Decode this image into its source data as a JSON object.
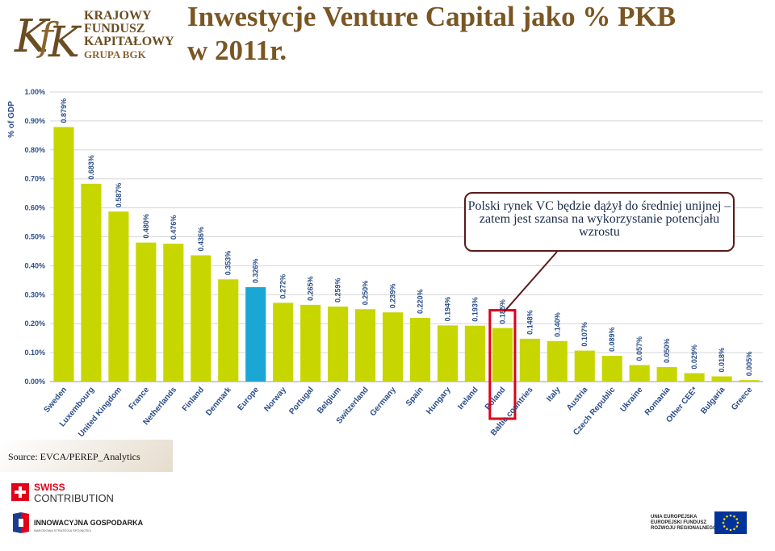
{
  "logo": {
    "monogram": "KFK",
    "line1": "KRAJOWY",
    "line2": "FUNDUSZ",
    "line3": "KAPITAŁOWY",
    "line4": "GRUPA BGK"
  },
  "title": {
    "line1": "Inwestycje Venture Capital jako % PKB",
    "line2": "w 2011r."
  },
  "callout": {
    "text": "Polski rynek VC będzie dążył do średniej unijnej – zatem jest szansa na wykorzystanie potencjału wzrostu"
  },
  "source": "Source: EVCA/PEREP_Analytics",
  "footer": {
    "swiss_line1": "SWISS",
    "swiss_line2": "CONTRIBUTION",
    "ig_line1": "INNOWACYJNA GOSPODARKA",
    "ig_line2": "NARODOWA STRATEGIA SPÓJNOŚCI",
    "eu_line1": "UNIA EUROPEJSKA",
    "eu_line2": "EUROPEJSKI FUNDUSZ",
    "eu_line3": "ROZWOJU REGIONALNEGO"
  },
  "colors": {
    "bar": "#c8d600",
    "bar_highlight": "#1aa7d6",
    "highlight_box": "#e0001a",
    "axis_text": "#2a4d8a",
    "title": "#7a5623"
  },
  "chart_data": {
    "type": "bar",
    "ylabel": "% of GDP",
    "ylim": [
      0,
      1.0
    ],
    "yticks": [
      "0.00%",
      "0.10%",
      "0.20%",
      "0.30%",
      "0.40%",
      "0.50%",
      "0.60%",
      "0.70%",
      "0.80%",
      "0.90%",
      "1.00%"
    ],
    "grid": true,
    "categories": [
      "Sweden",
      "Luxembourg",
      "United Kingdom",
      "France",
      "Netherlands",
      "Finland",
      "Denmark",
      "Europe",
      "Norway",
      "Portugal",
      "Belgium",
      "Switzerland",
      "Germany",
      "Spain",
      "Hungary",
      "Ireland",
      "Poland",
      "Baltic countries",
      "Italy",
      "Austria",
      "Czech Republic",
      "Ukraine",
      "Romania",
      "Other CEE*",
      "Bulgaria",
      "Greece"
    ],
    "values": [
      0.879,
      0.683,
      0.587,
      0.48,
      0.476,
      0.436,
      0.353,
      0.326,
      0.272,
      0.265,
      0.259,
      0.25,
      0.239,
      0.22,
      0.194,
      0.193,
      0.185,
      0.148,
      0.14,
      0.107,
      0.089,
      0.057,
      0.05,
      0.029,
      0.018,
      0.005
    ],
    "value_labels": [
      "0.879%",
      "0.683%",
      "0.587%",
      "0.480%",
      "0.476%",
      "0.436%",
      "0.353%",
      "0.326%",
      "0.272%",
      "0.265%",
      "0.259%",
      "0.250%",
      "0.239%",
      "0.220%",
      "0.194%",
      "0.193%",
      "0.185%",
      "0.148%",
      "0.140%",
      "0.107%",
      "0.089%",
      "0.057%",
      "0.050%",
      "0.029%",
      "0.018%",
      "0.005%"
    ],
    "highlight_category": "Europe",
    "boxed_category": "Poland"
  }
}
